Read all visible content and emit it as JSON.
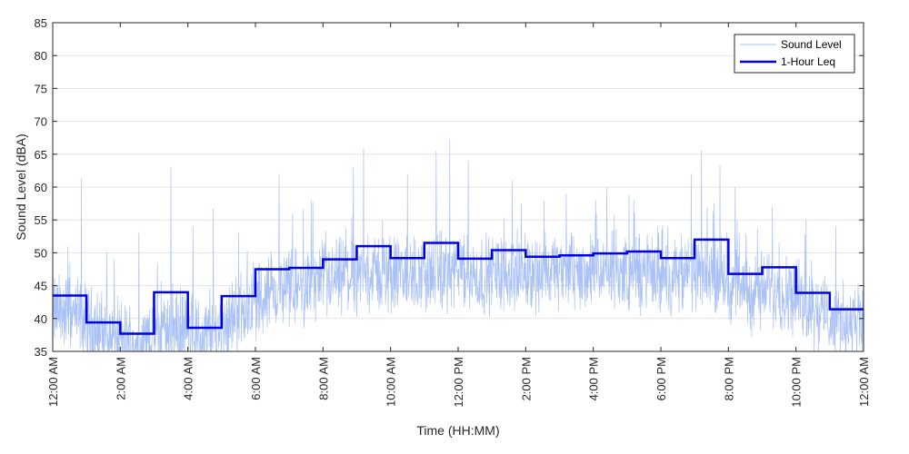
{
  "chart_data": {
    "type": "line",
    "xlabel": "Time (HH:MM)",
    "ylabel": "Sound Level (dBA)",
    "ylim": [
      35,
      85
    ],
    "xlim_hours": [
      0,
      24
    ],
    "yticks": [
      35,
      40,
      45,
      50,
      55,
      60,
      65,
      70,
      75,
      80,
      85
    ],
    "xticks": [
      {
        "hour": 0,
        "label": "12:00 AM"
      },
      {
        "hour": 2,
        "label": "2:00 AM"
      },
      {
        "hour": 4,
        "label": "4:00 AM"
      },
      {
        "hour": 6,
        "label": "6:00 AM"
      },
      {
        "hour": 8,
        "label": "8:00 AM"
      },
      {
        "hour": 10,
        "label": "10:00 AM"
      },
      {
        "hour": 12,
        "label": "12:00 PM"
      },
      {
        "hour": 14,
        "label": "2:00 PM"
      },
      {
        "hour": 16,
        "label": "4:00 PM"
      },
      {
        "hour": 18,
        "label": "6:00 PM"
      },
      {
        "hour": 20,
        "label": "8:00 PM"
      },
      {
        "hour": 22,
        "label": "10:00 PM"
      },
      {
        "hour": 24,
        "label": "12:00 AM"
      }
    ],
    "grid": "horizontal",
    "legend_position": "top-right",
    "legend": {
      "sound_level_label": "Sound Level",
      "leq_label": "1-Hour Leq"
    },
    "colors": {
      "sound_level": "#a9c1f6",
      "leq": "#0000e6",
      "grid": "#e3e3e3",
      "axis": "#262626"
    },
    "series": [
      {
        "name": "1-Hour Leq",
        "style": "step",
        "hours": [
          0,
          1,
          2,
          3,
          4,
          5,
          6,
          7,
          8,
          9,
          10,
          11,
          12,
          13,
          14,
          15,
          16,
          17,
          18,
          19,
          20,
          21,
          22,
          23
        ],
        "values": [
          43.5,
          39.4,
          37.7,
          44.0,
          38.6,
          43.4,
          47.5,
          47.7,
          49.0,
          51.0,
          49.2,
          51.5,
          49.1,
          50.4,
          49.4,
          49.6,
          49.9,
          50.2,
          49.2,
          52.0,
          46.8,
          47.8,
          43.9,
          41.4
        ]
      },
      {
        "name": "Sound Level",
        "style": "line",
        "hourly_mean": [
          41,
          38,
          36,
          39,
          37,
          41,
          44,
          45,
          46,
          47,
          46.5,
          47,
          46.5,
          47,
          47,
          47,
          47,
          47,
          46.5,
          47,
          44,
          44.5,
          41.5,
          39
        ],
        "peaks": [
          {
            "hour": 0.45,
            "value": 51
          },
          {
            "hour": 0.85,
            "value": 61.3
          },
          {
            "hour": 1.6,
            "value": 50
          },
          {
            "hour": 2.55,
            "value": 53
          },
          {
            "hour": 3.1,
            "value": 48.5
          },
          {
            "hour": 3.5,
            "value": 63
          },
          {
            "hour": 4.15,
            "value": 54
          },
          {
            "hour": 4.75,
            "value": 56.7
          },
          {
            "hour": 5.5,
            "value": 53
          },
          {
            "hour": 6.7,
            "value": 62
          },
          {
            "hour": 7.1,
            "value": 56
          },
          {
            "hour": 7.65,
            "value": 58
          },
          {
            "hour": 8.9,
            "value": 63
          },
          {
            "hour": 9.2,
            "value": 66
          },
          {
            "hour": 10.5,
            "value": 62
          },
          {
            "hour": 11.35,
            "value": 65.5
          },
          {
            "hour": 11.75,
            "value": 67.3
          },
          {
            "hour": 12.3,
            "value": 64
          },
          {
            "hour": 13.6,
            "value": 61
          },
          {
            "hour": 15.2,
            "value": 59
          },
          {
            "hour": 16.4,
            "value": 60
          },
          {
            "hour": 17.2,
            "value": 58
          },
          {
            "hour": 18.9,
            "value": 62
          },
          {
            "hour": 19.2,
            "value": 65.6
          },
          {
            "hour": 19.75,
            "value": 63.3
          },
          {
            "hour": 20.2,
            "value": 60
          },
          {
            "hour": 21.3,
            "value": 57
          },
          {
            "hour": 22.3,
            "value": 55
          },
          {
            "hour": 23.4,
            "value": 46
          }
        ]
      }
    ]
  }
}
